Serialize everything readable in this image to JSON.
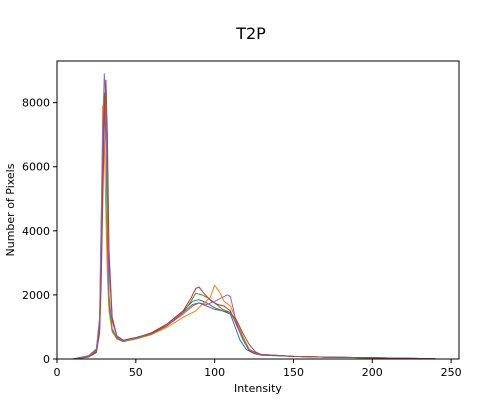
{
  "chart_data": {
    "type": "line",
    "title": "T2P",
    "xlabel": "Intensity",
    "ylabel": "Number of Pixels",
    "xlim": [
      0,
      255
    ],
    "ylim": [
      0,
      9300
    ],
    "x_ticks": [
      0,
      50,
      100,
      150,
      200,
      250
    ],
    "y_ticks": [
      0,
      2000,
      4000,
      6000,
      8000
    ],
    "grid": false,
    "legend": "none",
    "series_colors": [
      "#1f77b4",
      "#ff7f0e",
      "#2ca02c",
      "#d62728",
      "#9467bd",
      "#8c564b"
    ],
    "series": [
      {
        "color": "#1f77b4",
        "x": [
          10,
          20,
          25,
          27,
          28,
          29,
          30,
          31,
          32,
          33,
          35,
          38,
          42,
          50,
          60,
          70,
          80,
          86,
          90,
          95,
          100,
          105,
          110,
          113,
          116,
          120,
          125,
          130,
          150,
          170,
          200,
          220,
          240
        ],
        "y": [
          0,
          100,
          300,
          1200,
          3900,
          6500,
          8300,
          7500,
          4200,
          1800,
          900,
          650,
          560,
          650,
          800,
          1100,
          1500,
          1800,
          1850,
          1750,
          1600,
          1500,
          1400,
          1000,
          600,
          300,
          170,
          120,
          80,
          60,
          40,
          25,
          10
        ]
      },
      {
        "color": "#ff7f0e",
        "x": [
          10,
          20,
          25,
          27,
          28,
          29,
          30,
          31,
          32,
          33,
          35,
          38,
          42,
          50,
          60,
          70,
          80,
          88,
          92,
          97,
          100,
          103,
          106,
          110,
          114,
          118,
          122,
          128,
          150,
          170,
          200,
          220,
          240
        ],
        "y": [
          0,
          80,
          250,
          1000,
          3500,
          7900,
          6800,
          4500,
          2600,
          1500,
          850,
          620,
          540,
          620,
          760,
          1000,
          1300,
          1500,
          1700,
          1900,
          2300,
          2100,
          1800,
          1650,
          1200,
          700,
          300,
          140,
          80,
          60,
          40,
          25,
          10
        ]
      },
      {
        "color": "#2ca02c",
        "x": [
          10,
          20,
          25,
          27,
          28,
          29,
          30,
          31,
          32,
          33,
          35,
          38,
          42,
          50,
          60,
          70,
          80,
          85,
          88,
          92,
          96,
          100,
          105,
          110,
          114,
          118,
          122,
          128,
          150,
          170,
          200,
          220,
          240
        ],
        "y": [
          0,
          90,
          280,
          1100,
          3000,
          6000,
          8200,
          6700,
          3600,
          1700,
          880,
          640,
          550,
          640,
          780,
          1050,
          1450,
          1800,
          2050,
          2000,
          1900,
          1750,
          1550,
          1450,
          1100,
          650,
          280,
          150,
          80,
          60,
          40,
          25,
          10
        ]
      },
      {
        "color": "#d62728",
        "x": [
          10,
          20,
          25,
          27,
          28,
          29,
          30,
          31,
          32,
          33,
          35,
          38,
          42,
          50,
          60,
          70,
          80,
          85,
          88,
          90,
          94,
          98,
          102,
          106,
          110,
          114,
          118,
          122,
          128,
          150,
          170,
          200,
          220,
          240
        ],
        "y": [
          0,
          70,
          230,
          900,
          2600,
          5500,
          7800,
          8700,
          6200,
          3000,
          1200,
          700,
          580,
          660,
          820,
          1100,
          1500,
          1900,
          2200,
          2250,
          2000,
          1800,
          1700,
          1650,
          1500,
          1050,
          600,
          260,
          140,
          80,
          60,
          40,
          25,
          10
        ]
      },
      {
        "color": "#9467bd",
        "x": [
          10,
          20,
          25,
          27,
          28,
          29,
          30,
          31,
          32,
          33,
          35,
          38,
          42,
          50,
          60,
          70,
          80,
          86,
          90,
          95,
          100,
          104,
          108,
          110,
          113,
          117,
          121,
          128,
          150,
          170,
          200,
          220,
          240
        ],
        "y": [
          0,
          100,
          320,
          1300,
          4200,
          7200,
          8900,
          8000,
          4600,
          2000,
          950,
          660,
          570,
          650,
          790,
          1050,
          1400,
          1650,
          1750,
          1700,
          1800,
          1900,
          2000,
          1950,
          1300,
          700,
          320,
          150,
          80,
          60,
          40,
          25,
          10
        ]
      },
      {
        "color": "#8c564b",
        "x": [
          10,
          20,
          25,
          27,
          28,
          29,
          30,
          31,
          32,
          33,
          35,
          38,
          42,
          50,
          60,
          70,
          80,
          86,
          90,
          95,
          100,
          105,
          110,
          114,
          118,
          122,
          126,
          130,
          150,
          170,
          200,
          220,
          240
        ],
        "y": [
          0,
          60,
          200,
          800,
          2200,
          4800,
          7200,
          8700,
          7000,
          3400,
          1300,
          720,
          590,
          670,
          800,
          1050,
          1450,
          1700,
          1750,
          1650,
          1550,
          1500,
          1450,
          1200,
          800,
          450,
          220,
          130,
          80,
          60,
          40,
          25,
          10
        ]
      }
    ]
  }
}
